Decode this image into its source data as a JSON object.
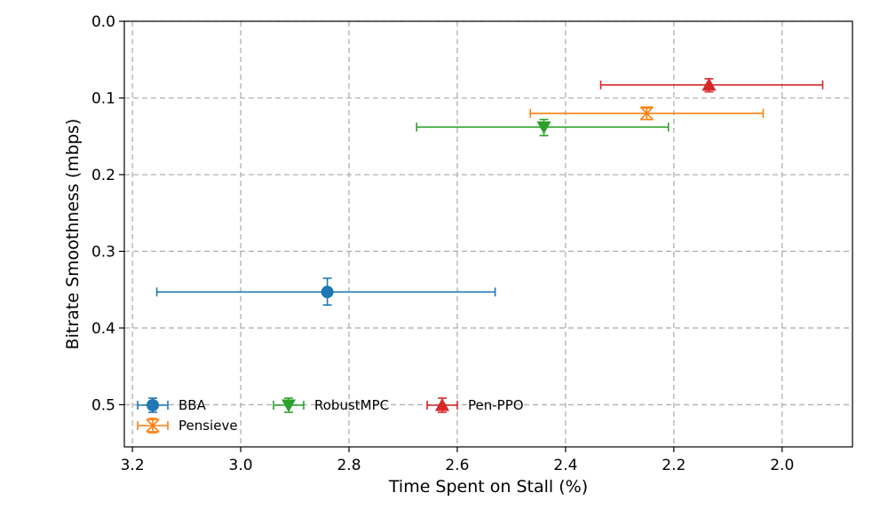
{
  "chart_data": {
    "type": "scatter",
    "xlabel": "Time Spent on Stall (%)",
    "ylabel": "Bitrate Smoothness (mbps)",
    "xlim": [
      3.215,
      1.87
    ],
    "ylim": [
      0.555,
      0.0
    ],
    "x_inverted": true,
    "y_inverted": true,
    "x_ticks": [
      "3.2",
      "3.0",
      "2.8",
      "2.6",
      "2.4",
      "2.2",
      "2.0"
    ],
    "y_ticks": [
      "0.0",
      "0.1",
      "0.2",
      "0.3",
      "0.4",
      "0.5"
    ],
    "grid": true,
    "legend_position": "lower-left",
    "series": [
      {
        "name": "BBA",
        "color": "#1f77b4",
        "marker": "circle",
        "x": 2.84,
        "y": 0.353,
        "x_err_low": 3.155,
        "x_err_high": 2.53,
        "y_err_low": 0.335,
        "y_err_high": 0.37
      },
      {
        "name": "Pensieve",
        "color": "#ff7f0e",
        "marker": "x-hollow",
        "x": 2.25,
        "y": 0.12,
        "x_err_low": 2.465,
        "x_err_high": 2.035,
        "y_err_low": 0.113,
        "y_err_high": 0.128
      },
      {
        "name": "RobustMPC",
        "color": "#2ca02c",
        "marker": "triangle-down",
        "x": 2.44,
        "y": 0.138,
        "x_err_low": 2.675,
        "x_err_high": 2.21,
        "y_err_low": 0.128,
        "y_err_high": 0.149
      },
      {
        "name": "Pen-PPO",
        "color": "#d62728",
        "marker": "triangle-up",
        "x": 2.135,
        "y": 0.083,
        "x_err_low": 2.335,
        "x_err_high": 1.925,
        "y_err_low": 0.075,
        "y_err_high": 0.092
      }
    ]
  }
}
